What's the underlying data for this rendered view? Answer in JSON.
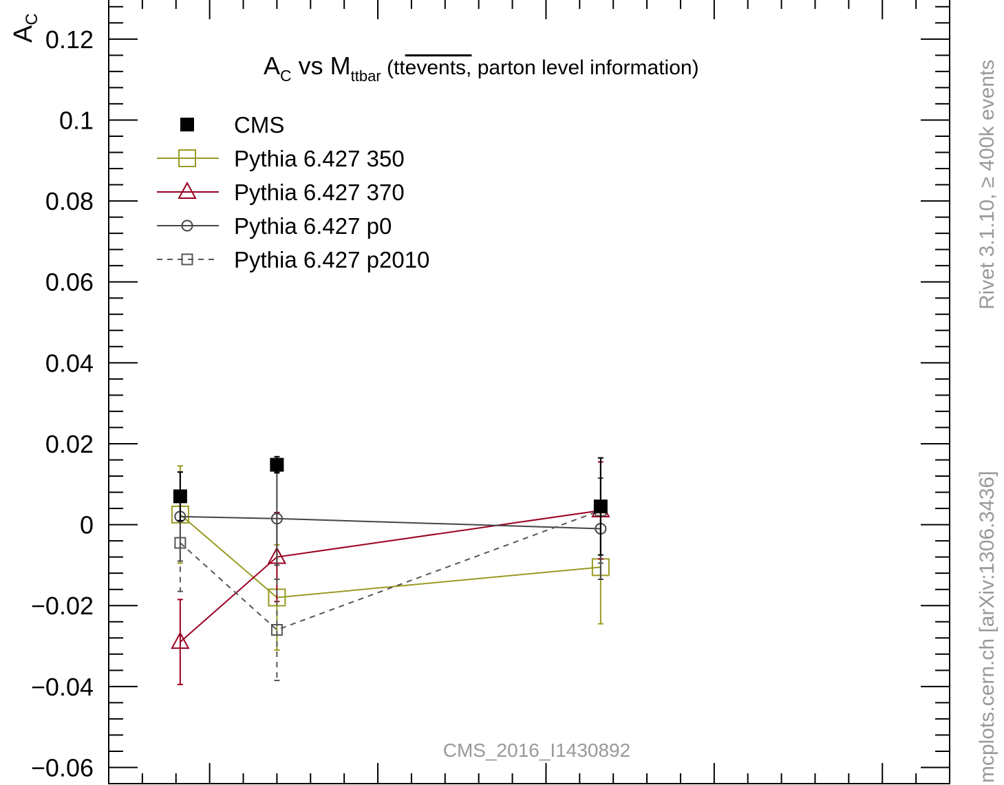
{
  "chart_data": {
    "type": "line",
    "title": {
      "main": "A",
      "main_sub": "C",
      "vs": " vs M",
      "vs_sub": "ttbar",
      "paren_open": " (tt",
      "overline": "events,",
      "rest": " parton level information)"
    },
    "ylabel": {
      "main": "A",
      "sub": "C"
    },
    "ylim": [
      -0.064,
      0.13
    ],
    "yticks": [
      -0.06,
      -0.04,
      -0.02,
      0,
      0.02,
      0.04,
      0.06,
      0.08,
      0.1,
      0.12
    ],
    "yticklabels": [
      "−0.06",
      "−0.04",
      "−0.02",
      "0",
      "0.02",
      "0.04",
      "0.06",
      "0.08",
      "0.1",
      "0.12"
    ],
    "xlim": [
      0,
      1
    ],
    "x": [
      0.085,
      0.2,
      0.585
    ],
    "legend_position": "top-left",
    "series": [
      {
        "name": "CMS",
        "color": "#000000",
        "marker": "filled-square",
        "line": "none",
        "values": [
          0.007,
          0.0148,
          0.0045
        ],
        "err_lo": [
          0.006,
          0.002,
          0.012
        ],
        "err_hi": [
          0.006,
          0.002,
          0.012
        ]
      },
      {
        "name": "Pythia 6.427 350",
        "color": "#999a22",
        "marker": "open-square",
        "line": "solid",
        "values": [
          0.0025,
          -0.018,
          -0.0105
        ],
        "err_lo": [
          0.012,
          0.013,
          0.014
        ],
        "err_hi": [
          0.012,
          0.013,
          0.014
        ]
      },
      {
        "name": "Pythia 6.427 370",
        "color": "#990022",
        "marker": "open-triangle",
        "line": "solid",
        "values": [
          -0.029,
          -0.008,
          0.0035
        ],
        "err_lo": [
          0.0105,
          0.011,
          0.012
        ],
        "err_hi": [
          0.0105,
          0.011,
          0.012
        ]
      },
      {
        "name": "Pythia 6.427 p0",
        "color": "#444444",
        "marker": "open-circle",
        "line": "solid",
        "values": [
          0.002,
          0.0015,
          -0.001
        ],
        "err_lo": [
          0.011,
          0.0115,
          0.0125
        ],
        "err_hi": [
          0.011,
          0.0115,
          0.0125
        ]
      },
      {
        "name": "Pythia 6.427 p2010",
        "color": "#555555",
        "marker": "open-square-small",
        "line": "dashed",
        "values": [
          -0.0045,
          -0.026,
          0.0035
        ],
        "err_lo": [
          0.012,
          0.0125,
          0.013
        ],
        "err_hi": [
          0.012,
          0.0125,
          0.013
        ]
      }
    ],
    "analysis_label": "CMS_2016_I1430892",
    "side_label_top": "Rivet 3.1.10, ≥ 400k events",
    "side_label_bottom": "mcplots.cern.ch [arXiv:1306.3436]"
  }
}
